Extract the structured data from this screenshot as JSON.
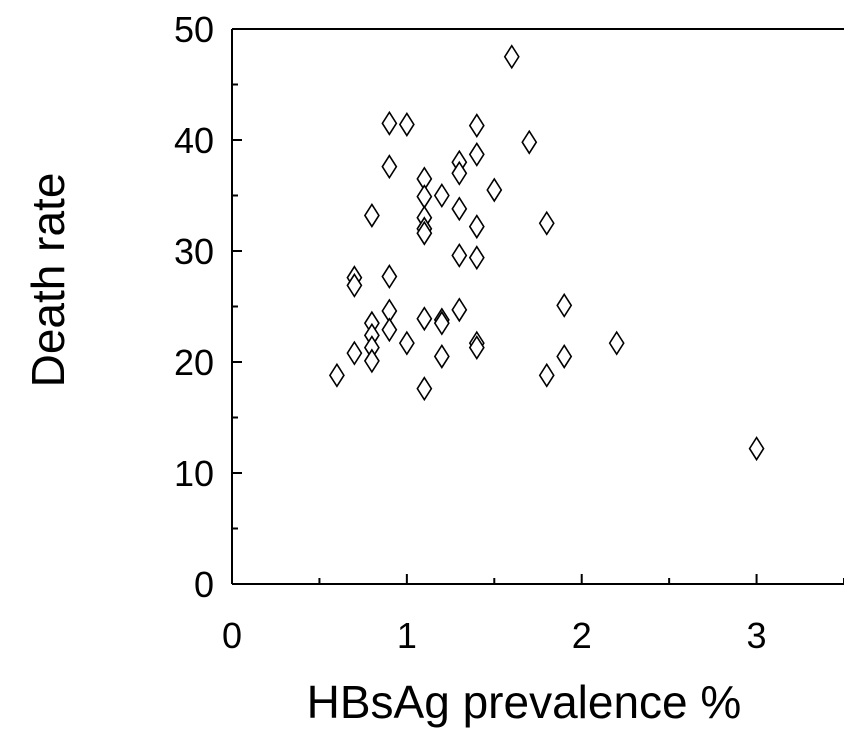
{
  "chart_data": {
    "type": "scatter",
    "title": "",
    "xlabel": "HBsAg prevalence %",
    "ylabel": "Death rate",
    "xlim": [
      0,
      3.5
    ],
    "ylim": [
      0,
      50
    ],
    "x_ticks": [
      0,
      1,
      2,
      3
    ],
    "y_ticks": [
      0,
      10,
      20,
      30,
      40,
      50
    ],
    "x_tick_labels": [
      "0",
      "1",
      "2",
      "3"
    ],
    "y_tick_labels": [
      "0",
      "10",
      "20",
      "30",
      "40",
      "50"
    ],
    "grid": false,
    "legend": "none",
    "marker": "open-diamond",
    "marker_color": "#000000",
    "series": [
      {
        "points": [
          [
            0.6,
            18.8
          ],
          [
            0.7,
            27.6
          ],
          [
            0.7,
            26.9
          ],
          [
            0.7,
            20.8
          ],
          [
            0.8,
            33.2
          ],
          [
            0.8,
            23.5
          ],
          [
            0.8,
            22.4
          ],
          [
            0.8,
            21.3
          ],
          [
            0.8,
            20.1
          ],
          [
            0.9,
            41.5
          ],
          [
            0.9,
            37.6
          ],
          [
            0.9,
            27.7
          ],
          [
            0.9,
            24.6
          ],
          [
            0.9,
            22.9
          ],
          [
            1.0,
            41.4
          ],
          [
            1.0,
            21.7
          ],
          [
            1.1,
            36.5
          ],
          [
            1.1,
            34.9
          ],
          [
            1.1,
            33.0
          ],
          [
            1.1,
            32.0
          ],
          [
            1.1,
            31.6
          ],
          [
            1.1,
            23.9
          ],
          [
            1.1,
            17.6
          ],
          [
            1.2,
            35.0
          ],
          [
            1.2,
            23.8
          ],
          [
            1.2,
            23.5
          ],
          [
            1.2,
            20.5
          ],
          [
            1.3,
            38.0
          ],
          [
            1.3,
            37.0
          ],
          [
            1.3,
            33.8
          ],
          [
            1.3,
            29.6
          ],
          [
            1.3,
            24.7
          ],
          [
            1.4,
            41.3
          ],
          [
            1.4,
            38.7
          ],
          [
            1.4,
            32.2
          ],
          [
            1.4,
            29.4
          ],
          [
            1.4,
            21.7
          ],
          [
            1.4,
            21.3
          ],
          [
            1.5,
            35.5
          ],
          [
            1.6,
            47.5
          ],
          [
            1.7,
            39.8
          ],
          [
            1.8,
            32.5
          ],
          [
            1.8,
            18.8
          ],
          [
            1.9,
            25.1
          ],
          [
            1.9,
            20.5
          ],
          [
            2.2,
            21.7
          ],
          [
            3.0,
            12.2
          ]
        ]
      }
    ]
  }
}
